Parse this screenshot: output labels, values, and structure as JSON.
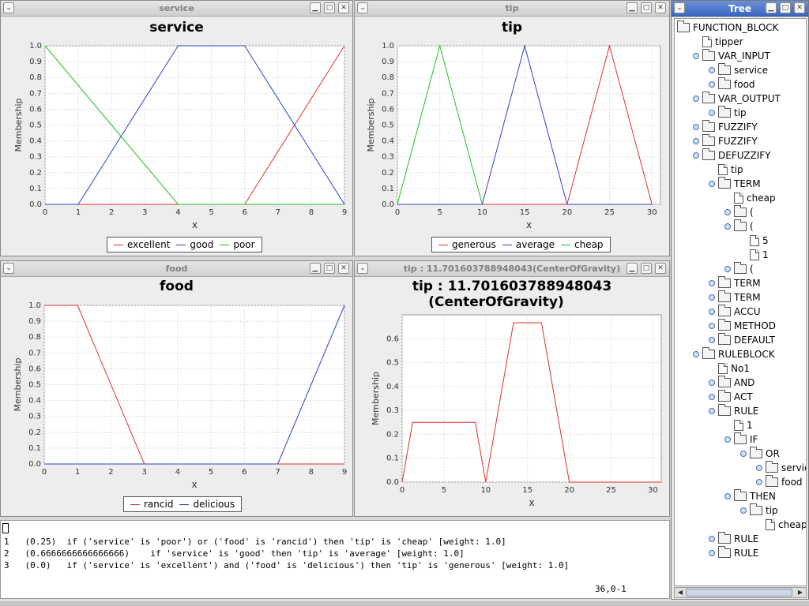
{
  "windows": {
    "service": {
      "title": "service",
      "chart_data": {
        "type": "line",
        "title": "service",
        "xlabel": "x",
        "ylabel": "Membership",
        "xlim": [
          0,
          9
        ],
        "ylim": [
          0,
          1
        ],
        "xticks": [
          "0",
          "1",
          "2",
          "3",
          "4",
          "5",
          "6",
          "7",
          "8",
          "9"
        ],
        "yticks": [
          "0.0",
          "0.1",
          "0.2",
          "0.3",
          "0.4",
          "0.5",
          "0.6",
          "0.7",
          "0.8",
          "0.9",
          "1.0"
        ],
        "grid": true,
        "legend_position": "bottom",
        "series": [
          {
            "name": "excellent",
            "color": "#e03030",
            "points": [
              [
                0,
                0
              ],
              [
                6,
                0
              ],
              [
                9,
                1
              ]
            ]
          },
          {
            "name": "good",
            "color": "#3040d0",
            "points": [
              [
                0,
                0
              ],
              [
                1,
                0
              ],
              [
                4,
                1
              ],
              [
                6,
                1
              ],
              [
                9,
                0
              ]
            ]
          },
          {
            "name": "poor",
            "color": "#20c020",
            "points": [
              [
                0,
                1
              ],
              [
                4,
                0
              ],
              [
                9,
                0
              ]
            ]
          }
        ]
      }
    },
    "tip": {
      "title": "tip",
      "chart_data": {
        "type": "line",
        "title": "tip",
        "xlabel": "x",
        "ylabel": "Membership",
        "xlim": [
          0,
          31
        ],
        "ylim": [
          0,
          1
        ],
        "xticks": [
          "0",
          "5",
          "10",
          "15",
          "20",
          "25",
          "30"
        ],
        "xtickvals": [
          0,
          5,
          10,
          15,
          20,
          25,
          30
        ],
        "yticks": [
          "0.0",
          "0.1",
          "0.2",
          "0.3",
          "0.4",
          "0.5",
          "0.6",
          "0.7",
          "0.8",
          "0.9",
          "1.0"
        ],
        "grid": true,
        "legend_position": "bottom",
        "series": [
          {
            "name": "generous",
            "color": "#e03030",
            "points": [
              [
                0,
                0
              ],
              [
                20,
                0
              ],
              [
                25,
                1
              ],
              [
                30,
                0
              ]
            ]
          },
          {
            "name": "average",
            "color": "#3040d0",
            "points": [
              [
                0,
                0
              ],
              [
                10,
                0
              ],
              [
                15,
                1
              ],
              [
                20,
                0
              ],
              [
                30,
                0
              ]
            ]
          },
          {
            "name": "cheap",
            "color": "#20c020",
            "points": [
              [
                0,
                0
              ],
              [
                5,
                1
              ],
              [
                10,
                0
              ]
            ]
          }
        ]
      }
    },
    "food": {
      "title": "food",
      "chart_data": {
        "type": "line",
        "title": "food",
        "xlabel": "x",
        "ylabel": "Membership",
        "xlim": [
          0,
          9
        ],
        "ylim": [
          0,
          1
        ],
        "xticks": [
          "0",
          "1",
          "2",
          "3",
          "4",
          "5",
          "6",
          "7",
          "8",
          "9"
        ],
        "yticks": [
          "0.0",
          "0.1",
          "0.2",
          "0.3",
          "0.4",
          "0.5",
          "0.6",
          "0.7",
          "0.8",
          "0.9",
          "1.0"
        ],
        "grid": true,
        "legend_position": "bottom",
        "series": [
          {
            "name": "rancid",
            "color": "#e03030",
            "points": [
              [
                0,
                1
              ],
              [
                1,
                1
              ],
              [
                3,
                0
              ],
              [
                9,
                0
              ]
            ]
          },
          {
            "name": "delicious",
            "color": "#3040d0",
            "points": [
              [
                0,
                0
              ],
              [
                7,
                0
              ],
              [
                9,
                1
              ]
            ]
          }
        ]
      }
    },
    "defuzz": {
      "title": "tip : 11.701603788948043(CenterOfGravity)",
      "chart_data": {
        "type": "line",
        "title_line1": "tip : 11.701603788948043",
        "title_line2": "(CenterOfGravity)",
        "xlabel": "x",
        "ylabel": "Membership",
        "xlim": [
          0,
          31
        ],
        "ylim": [
          0,
          0.7
        ],
        "xticks": [
          "0",
          "5",
          "10",
          "15",
          "20",
          "25",
          "30"
        ],
        "xtickvals": [
          0,
          5,
          10,
          15,
          20,
          25,
          30
        ],
        "yticks": [
          "0.0",
          "0.1",
          "0.2",
          "0.3",
          "0.4",
          "0.5",
          "0.6"
        ],
        "ytickvals": [
          0,
          0.1,
          0.2,
          0.3,
          0.4,
          0.5,
          0.6
        ],
        "grid": true,
        "series": [
          {
            "name": "",
            "color": "#e03030",
            "points": [
              [
                0,
                0
              ],
              [
                1.25,
                0.25
              ],
              [
                8.75,
                0.25
              ],
              [
                10,
                0
              ],
              [
                13.33,
                0.667
              ],
              [
                16.67,
                0.667
              ],
              [
                20,
                0
              ],
              [
                31,
                0
              ]
            ]
          }
        ]
      }
    }
  },
  "console": {
    "lines": [
      "1   (0.25)  if ('service' is 'poor') or ('food' is 'rancid') then 'tip' is 'cheap' [weight: 1.0]",
      "2   (0.6666666666666666)    if 'service' is 'good' then 'tip' is 'average' [weight: 1.0]",
      "3   (0.0)   if ('service' is 'excellent') and ('food' is 'delicious') then 'tip' is 'generous' [weight: 1.0]"
    ],
    "cursor_position": "36,0-1"
  },
  "tree": {
    "title": "Tree",
    "nodes": [
      {
        "label": "FUNCTION_BLOCK",
        "depth": 0,
        "kind": "folder",
        "expander": false
      },
      {
        "label": "tipper",
        "depth": 1,
        "kind": "file",
        "expander": false
      },
      {
        "label": "VAR_INPUT",
        "depth": 1,
        "kind": "folder",
        "expander": true
      },
      {
        "label": "service",
        "depth": 2,
        "kind": "folder",
        "expander": true
      },
      {
        "label": "food",
        "depth": 2,
        "kind": "folder",
        "expander": true
      },
      {
        "label": "VAR_OUTPUT",
        "depth": 1,
        "kind": "folder",
        "expander": true
      },
      {
        "label": "tip",
        "depth": 2,
        "kind": "folder",
        "expander": true
      },
      {
        "label": "FUZZIFY",
        "depth": 1,
        "kind": "folder",
        "expander": true
      },
      {
        "label": "FUZZIFY",
        "depth": 1,
        "kind": "folder",
        "expander": true
      },
      {
        "label": "DEFUZZIFY",
        "depth": 1,
        "kind": "folder",
        "expander": true
      },
      {
        "label": "tip",
        "depth": 2,
        "kind": "file",
        "expander": false
      },
      {
        "label": "TERM",
        "depth": 2,
        "kind": "folder",
        "expander": true
      },
      {
        "label": "cheap",
        "depth": 3,
        "kind": "file",
        "expander": false
      },
      {
        "label": "(",
        "depth": 3,
        "kind": "folder",
        "expander": true
      },
      {
        "label": "(",
        "depth": 3,
        "kind": "folder",
        "expander": true
      },
      {
        "label": "5",
        "depth": 4,
        "kind": "file",
        "expander": false
      },
      {
        "label": "1",
        "depth": 4,
        "kind": "file",
        "expander": false
      },
      {
        "label": "(",
        "depth": 3,
        "kind": "folder",
        "expander": true
      },
      {
        "label": "TERM",
        "depth": 2,
        "kind": "folder",
        "expander": true
      },
      {
        "label": "TERM",
        "depth": 2,
        "kind": "folder",
        "expander": true
      },
      {
        "label": "ACCU",
        "depth": 2,
        "kind": "folder",
        "expander": true
      },
      {
        "label": "METHOD",
        "depth": 2,
        "kind": "folder",
        "expander": true
      },
      {
        "label": "DEFAULT",
        "depth": 2,
        "kind": "folder",
        "expander": true
      },
      {
        "label": "RULEBLOCK",
        "depth": 1,
        "kind": "folder",
        "expander": true
      },
      {
        "label": "No1",
        "depth": 2,
        "kind": "file",
        "expander": false
      },
      {
        "label": "AND",
        "depth": 2,
        "kind": "folder",
        "expander": true
      },
      {
        "label": "ACT",
        "depth": 2,
        "kind": "folder",
        "expander": true
      },
      {
        "label": "RULE",
        "depth": 2,
        "kind": "folder",
        "expander": true
      },
      {
        "label": "1",
        "depth": 3,
        "kind": "file",
        "expander": false
      },
      {
        "label": "IF",
        "depth": 3,
        "kind": "folder",
        "expander": true
      },
      {
        "label": "OR",
        "depth": 4,
        "kind": "folder",
        "expander": true
      },
      {
        "label": "service",
        "depth": 5,
        "kind": "folder",
        "expander": true
      },
      {
        "label": "food",
        "depth": 5,
        "kind": "folder",
        "expander": true
      },
      {
        "label": "THEN",
        "depth": 3,
        "kind": "folder",
        "expander": true
      },
      {
        "label": "tip",
        "depth": 4,
        "kind": "folder",
        "expander": true
      },
      {
        "label": "cheap",
        "depth": 5,
        "kind": "file",
        "expander": false
      },
      {
        "label": "RULE",
        "depth": 2,
        "kind": "folder",
        "expander": true
      },
      {
        "label": "RULE",
        "depth": 2,
        "kind": "folder",
        "expander": true
      }
    ]
  },
  "icons": {
    "window_menu": "window-menu-icon",
    "minimize": "minimize-icon",
    "maximize": "maximize-icon",
    "close": "close-icon",
    "folder": "folder-icon",
    "file": "file-icon"
  }
}
